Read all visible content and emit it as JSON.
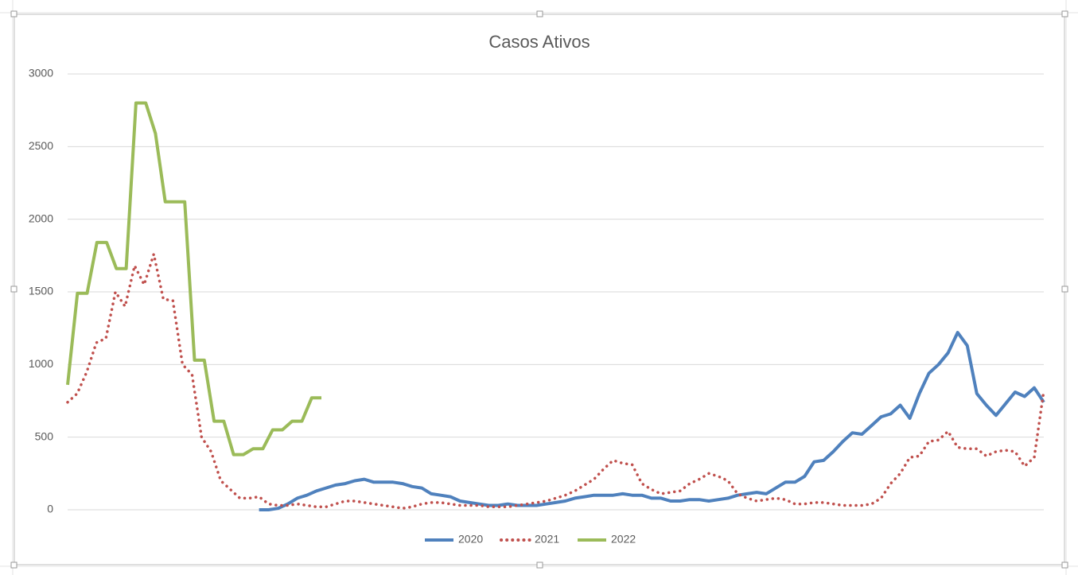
{
  "chart_data": {
    "type": "line",
    "title": "Casos Ativos",
    "ylim": [
      0,
      3000
    ],
    "yticks": [
      0,
      500,
      1000,
      1500,
      2000,
      2500,
      3000
    ],
    "grid": true,
    "legend": "bottom",
    "series": [
      {
        "name": "2020",
        "color": "#4f81bd",
        "style": "solid",
        "values": [
          null,
          null,
          null,
          null,
          null,
          null,
          null,
          null,
          null,
          null,
          null,
          null,
          null,
          null,
          null,
          null,
          null,
          null,
          null,
          null,
          0,
          0,
          10,
          40,
          80,
          100,
          130,
          150,
          170,
          180,
          200,
          210,
          190,
          190,
          190,
          180,
          160,
          150,
          110,
          100,
          90,
          60,
          50,
          40,
          30,
          30,
          40,
          30,
          30,
          30,
          40,
          50,
          60,
          80,
          90,
          100,
          100,
          100,
          110,
          100,
          100,
          80,
          80,
          60,
          60,
          70,
          70,
          60,
          70,
          80,
          100,
          110,
          120,
          110,
          150,
          190,
          190,
          230,
          330,
          340,
          400,
          470,
          530,
          520,
          580,
          640,
          660,
          720,
          630,
          800,
          940,
          1000,
          1080,
          1220,
          1130,
          800,
          720,
          650,
          730,
          810,
          780,
          840,
          740
        ]
      },
      {
        "name": "2021",
        "color": "#c0504d",
        "style": "dotted",
        "values": [
          740,
          800,
          950,
          1150,
          1180,
          1500,
          1400,
          1680,
          1550,
          1760,
          1450,
          1440,
          1000,
          930,
          500,
          400,
          200,
          140,
          80,
          80,
          90,
          40,
          30,
          30,
          40,
          30,
          20,
          20,
          40,
          60,
          60,
          50,
          40,
          30,
          20,
          10,
          20,
          40,
          50,
          50,
          40,
          30,
          30,
          30,
          20,
          20,
          20,
          30,
          40,
          50,
          60,
          80,
          100,
          130,
          170,
          210,
          280,
          340,
          320,
          310,
          180,
          140,
          110,
          120,
          130,
          180,
          210,
          250,
          230,
          200,
          110,
          80,
          60,
          70,
          80,
          70,
          40,
          40,
          50,
          50,
          40,
          30,
          30,
          30,
          40,
          80,
          180,
          250,
          360,
          370,
          470,
          480,
          540,
          430,
          420,
          420,
          370,
          400,
          410,
          400,
          300,
          360,
          820
        ]
      },
      {
        "name": "2022",
        "color": "#9bbb59",
        "style": "solid",
        "values": [
          860,
          1490,
          1490,
          1840,
          1840,
          1660,
          1660,
          2800,
          2800,
          2590,
          2120,
          2120,
          2120,
          1030,
          1030,
          610,
          610,
          380,
          380,
          420,
          420,
          550,
          550,
          610,
          610,
          770,
          770,
          null,
          null,
          null,
          null,
          null,
          null,
          null,
          null,
          null,
          null,
          null,
          null,
          null,
          null,
          null,
          null,
          null,
          null,
          null,
          null,
          null,
          null,
          null,
          null,
          null,
          null,
          null,
          null,
          null,
          null,
          null,
          null,
          null,
          null,
          null,
          null,
          null,
          null,
          null,
          null,
          null,
          null,
          null,
          null,
          null,
          null,
          null,
          null,
          null,
          null,
          null,
          null,
          null,
          null,
          null,
          null,
          null,
          null,
          null,
          null,
          null,
          null,
          null,
          null,
          null,
          null,
          null,
          null,
          null,
          null,
          null,
          null,
          null,
          null
        ]
      }
    ]
  }
}
